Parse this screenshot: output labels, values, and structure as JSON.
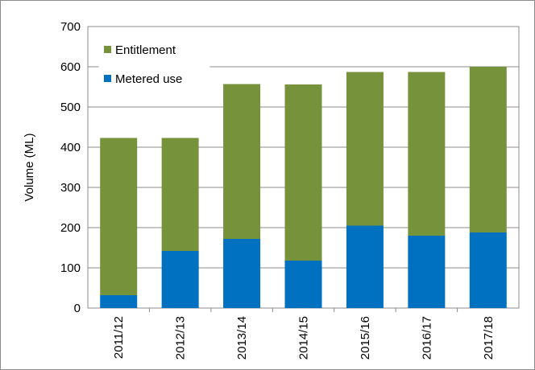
{
  "chart_data": {
    "type": "bar",
    "stacked": true,
    "categories": [
      "2011/12",
      "2012/13",
      "2013/14",
      "2014/15",
      "2015/16",
      "2016/17",
      "2017/18"
    ],
    "series": [
      {
        "name": "Metered use",
        "values": [
          32,
          142,
          172,
          118,
          205,
          180,
          188
        ],
        "color": "#0070c0"
      },
      {
        "name": "Entitlement",
        "values": [
          391,
          281,
          385,
          438,
          382,
          407,
          412
        ],
        "color": "#76933c"
      }
    ],
    "totals": [
      423,
      423,
      557,
      556,
      587,
      587,
      600
    ],
    "title": "",
    "xlabel": "",
    "ylabel": "Volume (ML)",
    "ylim": [
      0,
      700
    ],
    "yticks": [
      0,
      100,
      200,
      300,
      400,
      500,
      600,
      700
    ],
    "grid": true,
    "legend": {
      "position": "top-left",
      "order": [
        "Entitlement",
        "Metered use"
      ]
    }
  }
}
